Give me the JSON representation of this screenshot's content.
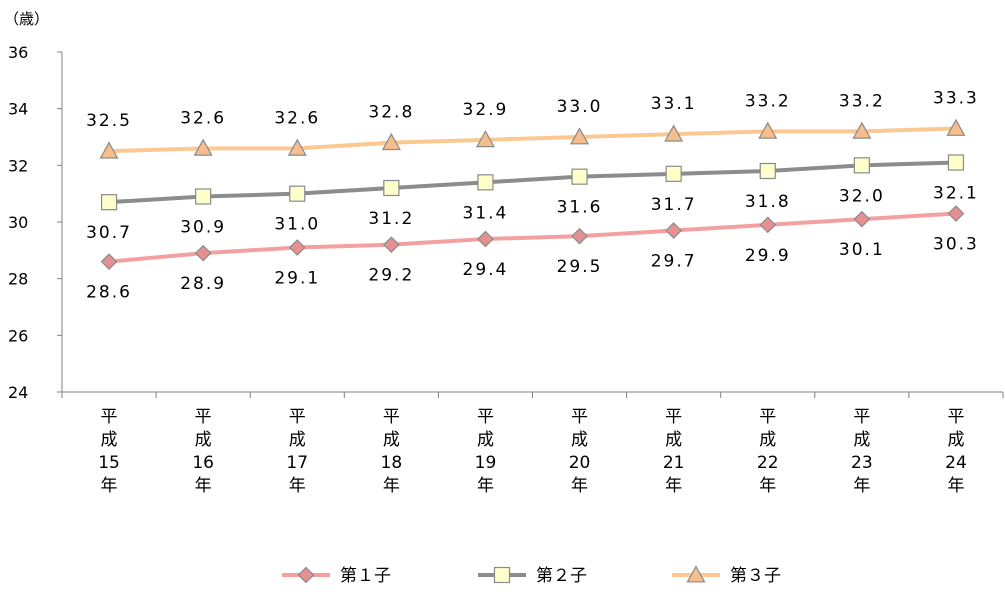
{
  "chart_data": {
    "type": "line",
    "ylabel": "（歳）",
    "ylim": [
      24,
      36
    ],
    "yticks": [
      "24",
      "26",
      "28",
      "30",
      "32",
      "34",
      "36"
    ],
    "categories": [
      [
        "平",
        "成",
        "15",
        "年"
      ],
      [
        "平",
        "成",
        "16",
        "年"
      ],
      [
        "平",
        "成",
        "17",
        "年"
      ],
      [
        "平",
        "成",
        "18",
        "年"
      ],
      [
        "平",
        "成",
        "19",
        "年"
      ],
      [
        "平",
        "成",
        "20",
        "年"
      ],
      [
        "平",
        "成",
        "21",
        "年"
      ],
      [
        "平",
        "成",
        "22",
        "年"
      ],
      [
        "平",
        "成",
        "23",
        "年"
      ],
      [
        "平",
        "成",
        "24",
        "年"
      ]
    ],
    "series": [
      {
        "name": "第１子",
        "marker": "diamond",
        "line_color": "#f4a0a0",
        "marker_fill": "#e59191",
        "values": [
          28.6,
          28.9,
          29.1,
          29.2,
          29.4,
          29.5,
          29.7,
          29.9,
          30.1,
          30.3
        ],
        "labels": [
          "28.6",
          "28.9",
          "29.1",
          "29.2",
          "29.4",
          "29.5",
          "29.7",
          "29.9",
          "30.1",
          "30.3"
        ],
        "label_position": "below"
      },
      {
        "name": "第２子",
        "marker": "square",
        "line_color": "#8c8c8c",
        "marker_fill": "#ffffcc",
        "values": [
          30.7,
          30.9,
          31.0,
          31.2,
          31.4,
          31.6,
          31.7,
          31.8,
          32.0,
          32.1
        ],
        "labels": [
          "30.7",
          "30.9",
          "31.0",
          "31.2",
          "31.4",
          "31.6",
          "31.7",
          "31.8",
          "32.0",
          "32.1"
        ],
        "label_position": "below"
      },
      {
        "name": "第３子",
        "marker": "triangle",
        "line_color": "#fac890",
        "marker_fill": "#f5be8c",
        "values": [
          32.5,
          32.6,
          32.6,
          32.8,
          32.9,
          33.0,
          33.1,
          33.2,
          33.2,
          33.3
        ],
        "labels": [
          "32.5",
          "32.6",
          "32.6",
          "32.8",
          "32.9",
          "33.0",
          "33.1",
          "33.2",
          "33.2",
          "33.3"
        ],
        "label_position": "above"
      }
    ],
    "grid": false,
    "legend": "bottom-center"
  }
}
